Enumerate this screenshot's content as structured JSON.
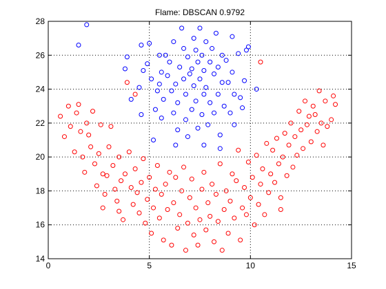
{
  "chart_data": {
    "type": "scatter",
    "title": "Flame: DBSCAN 0.9792",
    "xlabel": "",
    "ylabel": "",
    "xlim": [
      0,
      15
    ],
    "ylim": [
      14,
      28
    ],
    "grid": true,
    "grid_style": "dotted",
    "x_ticks": [
      "0",
      "5",
      "10",
      "15"
    ],
    "y_ticks": [
      "14",
      "16",
      "18",
      "20",
      "22",
      "24",
      "26",
      "28"
    ],
    "marker": "open-circle",
    "series": [
      {
        "color": "#0000ff",
        "points": [
          [
            1.9,
            27.8
          ],
          [
            1.5,
            26.6
          ],
          [
            3.8,
            25.2
          ],
          [
            3.9,
            25.9
          ],
          [
            4.1,
            23.4
          ],
          [
            4.5,
            24.1
          ],
          [
            4.6,
            22.5
          ],
          [
            4.7,
            25.1
          ],
          [
            4.6,
            26.6
          ],
          [
            4.9,
            25.5
          ],
          [
            5.0,
            26.7
          ],
          [
            5.1,
            24.6
          ],
          [
            5.2,
            21.0
          ],
          [
            5.3,
            22.8
          ],
          [
            5.4,
            23.9
          ],
          [
            5.5,
            26.0
          ],
          [
            5.6,
            25.0
          ],
          [
            5.5,
            24.3
          ],
          [
            5.6,
            22.3
          ],
          [
            5.7,
            23.4
          ],
          [
            5.8,
            26.0
          ],
          [
            5.9,
            24.8
          ],
          [
            6.0,
            25.6
          ],
          [
            6.1,
            23.9
          ],
          [
            6.2,
            22.6
          ],
          [
            6.2,
            26.8
          ],
          [
            6.3,
            24.3
          ],
          [
            6.4,
            23.2
          ],
          [
            6.4,
            21.6
          ],
          [
            6.3,
            20.7
          ],
          [
            6.5,
            25.3
          ],
          [
            6.6,
            27.6
          ],
          [
            6.7,
            24.6
          ],
          [
            6.7,
            26.4
          ],
          [
            6.8,
            23.7
          ],
          [
            6.8,
            22.2
          ],
          [
            6.9,
            25.9
          ],
          [
            6.9,
            21.2
          ],
          [
            7.0,
            24.9
          ],
          [
            7.1,
            25.2
          ],
          [
            7.1,
            22.8
          ],
          [
            7.2,
            24.2
          ],
          [
            7.2,
            27.0
          ],
          [
            7.3,
            26.3
          ],
          [
            7.3,
            23.3
          ],
          [
            7.4,
            25.6
          ],
          [
            7.4,
            21.7
          ],
          [
            7.5,
            27.6
          ],
          [
            7.5,
            24.6
          ],
          [
            7.6,
            26.0
          ],
          [
            7.6,
            22.5
          ],
          [
            7.7,
            25.1
          ],
          [
            7.7,
            23.7
          ],
          [
            7.7,
            20.7
          ],
          [
            7.8,
            26.8
          ],
          [
            7.8,
            24.1
          ],
          [
            7.9,
            21.9
          ],
          [
            8.0,
            25.6
          ],
          [
            8.0,
            23.2
          ],
          [
            8.1,
            26.4
          ],
          [
            8.2,
            24.9
          ],
          [
            8.2,
            22.6
          ],
          [
            8.3,
            27.3
          ],
          [
            8.4,
            25.3
          ],
          [
            8.4,
            23.7
          ],
          [
            8.5,
            21.3
          ],
          [
            8.5,
            20.5
          ],
          [
            8.6,
            24.4
          ],
          [
            8.6,
            26.0
          ],
          [
            8.7,
            23.0
          ],
          [
            8.8,
            25.7
          ],
          [
            8.9,
            24.4
          ],
          [
            9.0,
            22.6
          ],
          [
            9.1,
            27.1
          ],
          [
            9.1,
            25.0
          ],
          [
            9.2,
            21.9
          ],
          [
            9.2,
            23.7
          ],
          [
            9.4,
            26.1
          ],
          [
            9.5,
            23.5
          ],
          [
            9.6,
            22.9
          ],
          [
            9.7,
            24.5
          ],
          [
            9.8,
            26.3
          ],
          [
            9.9,
            26.5
          ],
          [
            10.3,
            24.0
          ]
        ]
      },
      {
        "color": "#ff0000",
        "points": [
          [
            0.6,
            22.4
          ],
          [
            0.8,
            21.2
          ],
          [
            1.0,
            23.0
          ],
          [
            1.1,
            21.8
          ],
          [
            1.3,
            20.3
          ],
          [
            1.4,
            22.6
          ],
          [
            1.5,
            23.1
          ],
          [
            1.6,
            21.5
          ],
          [
            1.7,
            20.0
          ],
          [
            1.8,
            19.1
          ],
          [
            1.9,
            22.0
          ],
          [
            2.0,
            21.3
          ],
          [
            2.1,
            20.6
          ],
          [
            2.2,
            22.7
          ],
          [
            2.3,
            19.6
          ],
          [
            2.4,
            18.3
          ],
          [
            2.5,
            20.2
          ],
          [
            2.6,
            21.9
          ],
          [
            2.7,
            19.0
          ],
          [
            2.8,
            17.8
          ],
          [
            2.9,
            18.9
          ],
          [
            3.0,
            20.6
          ],
          [
            3.1,
            21.8
          ],
          [
            3.2,
            19.5
          ],
          [
            3.3,
            18.1
          ],
          [
            3.4,
            17.4
          ],
          [
            3.5,
            20.0
          ],
          [
            3.6,
            18.6
          ],
          [
            3.7,
            16.3
          ],
          [
            3.8,
            19.0
          ],
          [
            3.9,
            24.4
          ],
          [
            4.0,
            20.3
          ],
          [
            4.1,
            18.2
          ],
          [
            4.2,
            17.2
          ],
          [
            4.3,
            19.3
          ],
          [
            4.4,
            17.9
          ],
          [
            4.5,
            16.7
          ],
          [
            4.6,
            18.5
          ],
          [
            4.7,
            19.9
          ],
          [
            4.8,
            16.1
          ],
          [
            4.9,
            17.5
          ],
          [
            5.0,
            18.8
          ],
          [
            5.1,
            15.5
          ],
          [
            5.2,
            17.0
          ],
          [
            5.3,
            18.1
          ],
          [
            5.4,
            19.5
          ],
          [
            5.5,
            16.4
          ],
          [
            5.6,
            17.8
          ],
          [
            5.7,
            15.1
          ],
          [
            5.8,
            18.4
          ],
          [
            5.9,
            16.9
          ],
          [
            6.0,
            19.1
          ],
          [
            6.1,
            14.8
          ],
          [
            6.2,
            17.3
          ],
          [
            6.3,
            18.8
          ],
          [
            6.4,
            15.8
          ],
          [
            6.5,
            16.6
          ],
          [
            6.6,
            18.0
          ],
          [
            6.7,
            19.4
          ],
          [
            6.8,
            14.5
          ],
          [
            6.9,
            16.1
          ],
          [
            7.0,
            17.6
          ],
          [
            7.1,
            18.7
          ],
          [
            7.2,
            15.4
          ],
          [
            7.3,
            17.0
          ],
          [
            7.4,
            14.8
          ],
          [
            7.5,
            16.3
          ],
          [
            7.6,
            18.1
          ],
          [
            7.7,
            19.1
          ],
          [
            7.8,
            15.7
          ],
          [
            7.9,
            17.3
          ],
          [
            8.0,
            16.5
          ],
          [
            8.1,
            18.4
          ],
          [
            8.2,
            15.0
          ],
          [
            8.3,
            17.8
          ],
          [
            8.4,
            16.2
          ],
          [
            8.5,
            19.6
          ],
          [
            8.6,
            14.5
          ],
          [
            8.7,
            16.9
          ],
          [
            8.8,
            18.0
          ],
          [
            8.9,
            15.5
          ],
          [
            9.0,
            17.4
          ],
          [
            9.1,
            19.0
          ],
          [
            9.2,
            16.4
          ],
          [
            9.3,
            18.6
          ],
          [
            9.4,
            20.4
          ],
          [
            9.5,
            15.1
          ],
          [
            9.6,
            17.0
          ],
          [
            9.7,
            18.2
          ],
          [
            9.8,
            16.6
          ],
          [
            9.9,
            19.7
          ],
          [
            10.0,
            17.6
          ],
          [
            10.1,
            18.8
          ],
          [
            10.2,
            16.0
          ],
          [
            10.3,
            20.1
          ],
          [
            10.4,
            17.2
          ],
          [
            10.5,
            18.4
          ],
          [
            10.6,
            19.3
          ],
          [
            10.7,
            16.6
          ],
          [
            10.8,
            20.8
          ],
          [
            10.9,
            17.9
          ],
          [
            11.0,
            19.0
          ],
          [
            11.1,
            20.4
          ],
          [
            11.2,
            18.5
          ],
          [
            11.3,
            21.1
          ],
          [
            11.4,
            19.6
          ],
          [
            11.5,
            17.6
          ],
          [
            11.6,
            20.0
          ],
          [
            11.7,
            21.4
          ],
          [
            11.8,
            18.9
          ],
          [
            11.9,
            20.7
          ],
          [
            12.0,
            22.0
          ],
          [
            12.1,
            19.4
          ],
          [
            12.2,
            21.2
          ],
          [
            12.3,
            20.1
          ],
          [
            12.4,
            22.7
          ],
          [
            12.5,
            21.6
          ],
          [
            12.6,
            20.5
          ],
          [
            12.7,
            23.3
          ],
          [
            12.8,
            21.9
          ],
          [
            12.9,
            22.4
          ],
          [
            13.0,
            20.9
          ],
          [
            13.1,
            23.0
          ],
          [
            13.2,
            22.5
          ],
          [
            13.3,
            21.5
          ],
          [
            13.4,
            23.9
          ],
          [
            13.5,
            22.0
          ],
          [
            13.6,
            20.7
          ],
          [
            13.7,
            23.3
          ],
          [
            13.8,
            21.8
          ],
          [
            14.0,
            22.2
          ],
          [
            14.1,
            23.6
          ],
          [
            14.2,
            23.1
          ],
          [
            10.5,
            25.6
          ],
          [
            4.3,
            23.7
          ],
          [
            2.7,
            17.0
          ],
          [
            3.5,
            16.8
          ],
          [
            11.5,
            16.9
          ]
        ]
      }
    ]
  }
}
